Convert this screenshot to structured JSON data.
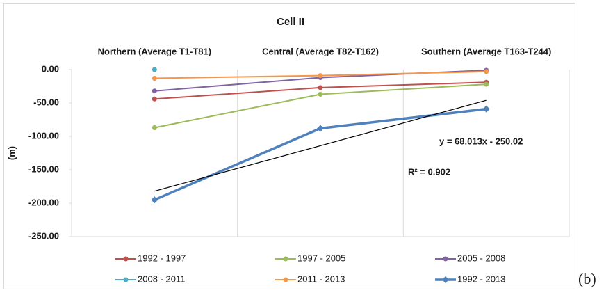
{
  "chart_data": {
    "type": "line",
    "title": "Cell II",
    "y_label": "(m)",
    "categories": [
      "Northern (Average T1-T81)",
      "Central (Average T82-T162)",
      "Southern (Average T163-T244)"
    ],
    "ylim": [
      -250,
      0
    ],
    "yticks": [
      {
        "value": 0,
        "label": "0.00"
      },
      {
        "value": -50,
        "label": "-50.00"
      },
      {
        "value": -100,
        "label": "-100.00"
      },
      {
        "value": -150,
        "label": "-150.00"
      },
      {
        "value": -200,
        "label": "-200.00"
      },
      {
        "value": -250,
        "label": "-250.00"
      }
    ],
    "grid": "x",
    "series": [
      {
        "name": "1992 - 1997",
        "color": "#c0504d",
        "marker": "circle",
        "width": 2,
        "values": [
          -44,
          -27,
          -19
        ]
      },
      {
        "name": "1997 - 2005",
        "color": "#9bbb59",
        "marker": "circle",
        "width": 2,
        "values": [
          -87,
          -37,
          -22
        ]
      },
      {
        "name": "2005 - 2008",
        "color": "#8064a2",
        "marker": "circle",
        "width": 2,
        "values": [
          -32,
          -12,
          -1
        ]
      },
      {
        "name": "2008 - 2011",
        "color": "#4bacc6",
        "marker": "circle",
        "width": 2,
        "values": [
          0,
          null,
          null
        ]
      },
      {
        "name": "2011 - 2013",
        "color": "#f79646",
        "marker": "circle",
        "width": 2,
        "values": [
          -13,
          -9,
          -3
        ]
      },
      {
        "name": "1992 - 2013",
        "color": "#4f81bd",
        "marker": "diamond",
        "width": 3.5,
        "values": [
          -195,
          -88,
          -59
        ]
      }
    ],
    "trendline": {
      "slope": 68.013,
      "intercept": -250.02,
      "color": "#000000",
      "equation": "y = 68.013x - 250.02",
      "r_squared": "R² = 0.902"
    }
  },
  "panel_label": "(b)"
}
